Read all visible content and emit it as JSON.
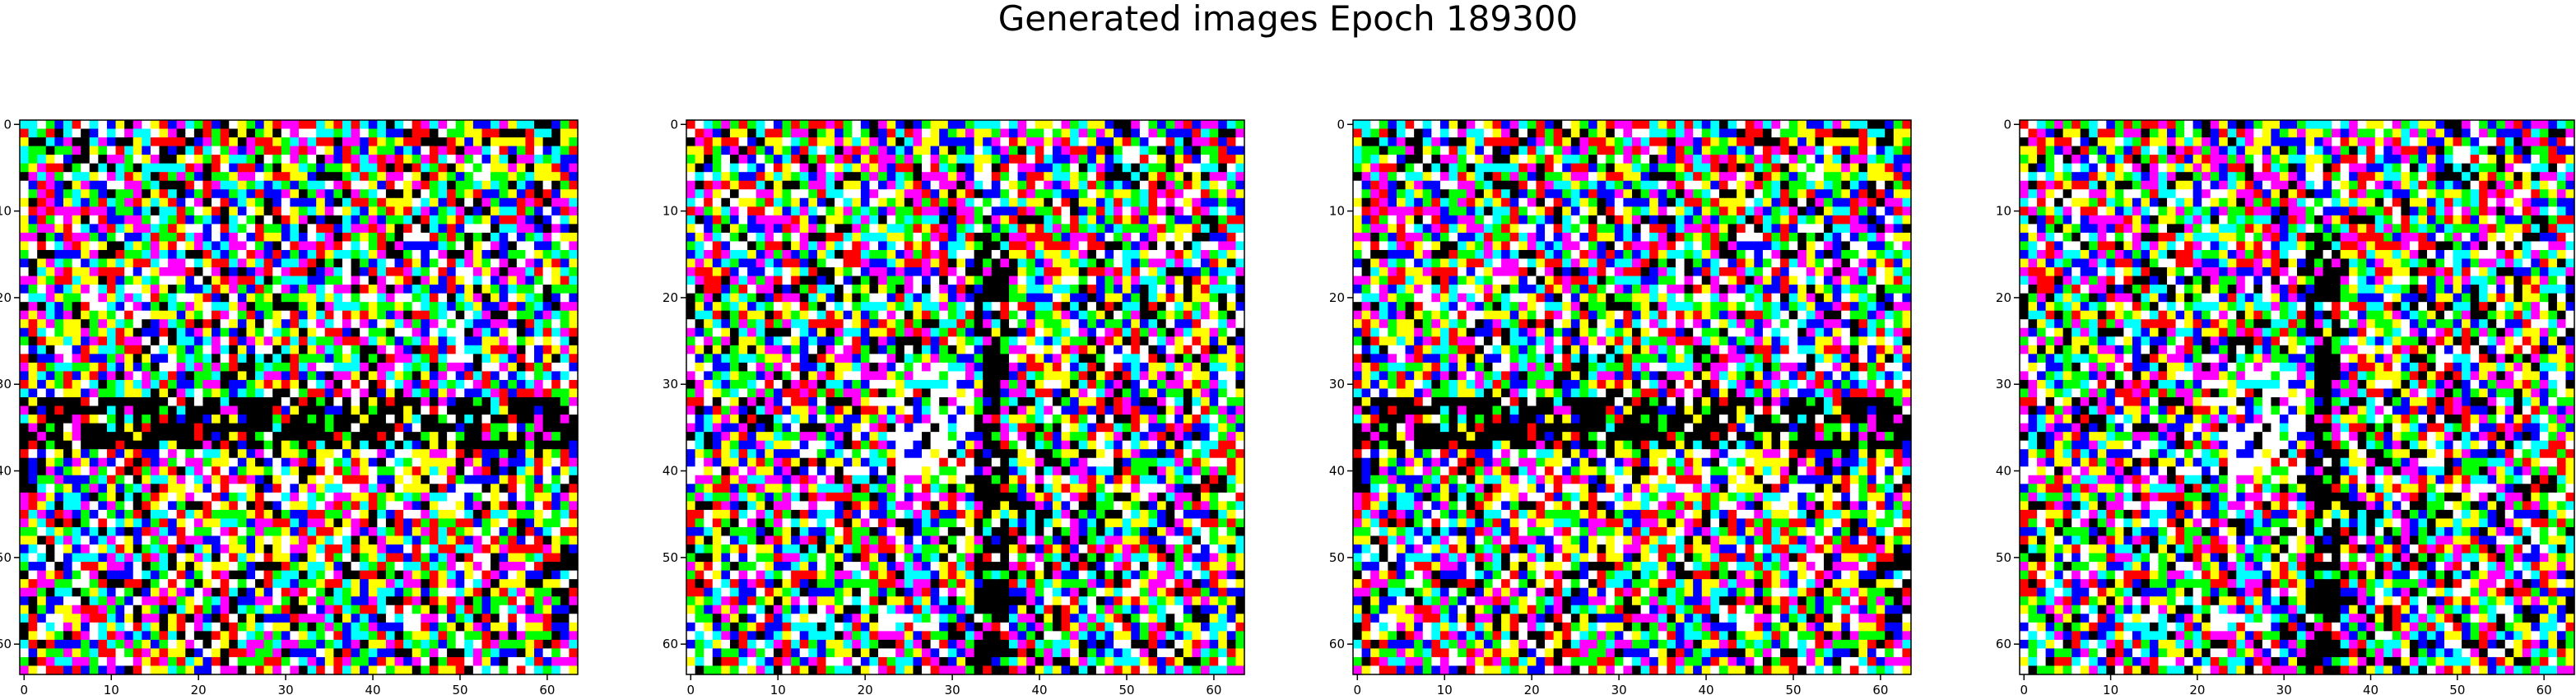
{
  "figure": {
    "title": "Generated images Epoch 189300"
  },
  "chart_data": [
    {
      "type": "heatmap",
      "xlim": [
        0,
        63
      ],
      "ylim": [
        63,
        0
      ],
      "xticks": [
        0,
        10,
        20,
        30,
        40,
        50,
        60
      ],
      "yticks": [
        0,
        10,
        20,
        30,
        40,
        50,
        60
      ],
      "grid": false,
      "variant": "horizontal-band",
      "colors": [
        "#ff0000",
        "#00ff00",
        "#0000ff",
        "#ffff00",
        "#ff00ff",
        "#00ffff",
        "#ffffff",
        "#000000"
      ]
    },
    {
      "type": "heatmap",
      "xlim": [
        0,
        63
      ],
      "ylim": [
        63,
        0
      ],
      "xticks": [
        0,
        10,
        20,
        30,
        40,
        50,
        60
      ],
      "yticks": [
        0,
        10,
        20,
        30,
        40,
        50,
        60
      ],
      "grid": false,
      "variant": "vertical-band",
      "colors": [
        "#ff0000",
        "#00ff00",
        "#0000ff",
        "#ffff00",
        "#ff00ff",
        "#00ffff",
        "#ffffff",
        "#000000"
      ]
    },
    {
      "type": "heatmap",
      "xlim": [
        0,
        63
      ],
      "ylim": [
        63,
        0
      ],
      "xticks": [
        0,
        10,
        20,
        30,
        40,
        50,
        60
      ],
      "yticks": [
        0,
        10,
        20,
        30,
        40,
        50,
        60
      ],
      "grid": false,
      "variant": "horizontal-band",
      "colors": [
        "#ff0000",
        "#00ff00",
        "#0000ff",
        "#ffff00",
        "#ff00ff",
        "#00ffff",
        "#ffffff",
        "#000000"
      ]
    },
    {
      "type": "heatmap",
      "xlim": [
        0,
        63
      ],
      "ylim": [
        63,
        0
      ],
      "xticks": [
        0,
        10,
        20,
        30,
        40,
        50,
        60
      ],
      "yticks": [
        0,
        10,
        20,
        30,
        40,
        50,
        60
      ],
      "grid": false,
      "variant": "vertical-band",
      "colors": [
        "#ff0000",
        "#00ff00",
        "#0000ff",
        "#ffff00",
        "#ff00ff",
        "#00ffff",
        "#ffffff",
        "#000000"
      ]
    }
  ]
}
